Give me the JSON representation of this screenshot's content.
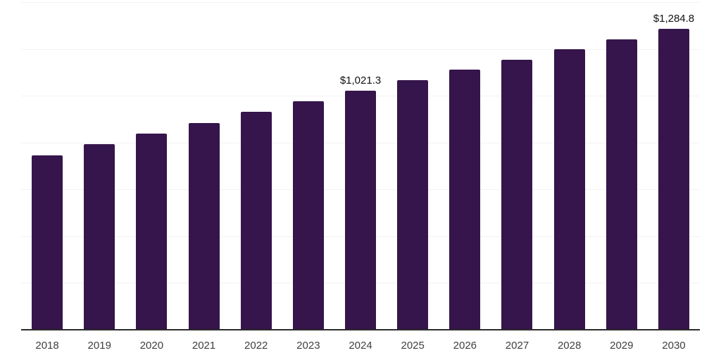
{
  "chart_data": {
    "type": "bar",
    "title": "",
    "categories": [
      "2018",
      "2019",
      "2020",
      "2021",
      "2022",
      "2023",
      "2024",
      "2025",
      "2026",
      "2027",
      "2028",
      "2029",
      "2030"
    ],
    "values": [
      744,
      792,
      838,
      884,
      930,
      977,
      1021.3,
      1066,
      1112,
      1155,
      1198,
      1242,
      1284.8
    ],
    "data_labels": [
      "",
      "",
      "",
      "",
      "",
      "",
      "$1,021.3",
      "",
      "",
      "",
      "",
      "",
      "$1,284.8"
    ],
    "ylim": [
      0,
      1400
    ],
    "gridline_step": 200,
    "grid": "horizontal-only",
    "legend": "none",
    "y_axis_labels_visible": false,
    "colors": {
      "bar": "#35154B",
      "gridline": "#F2F2F2",
      "axis_line": "#2B2B2B",
      "tick_label": "#404040",
      "data_label": "#111111",
      "background": "#FFFFFF"
    }
  }
}
